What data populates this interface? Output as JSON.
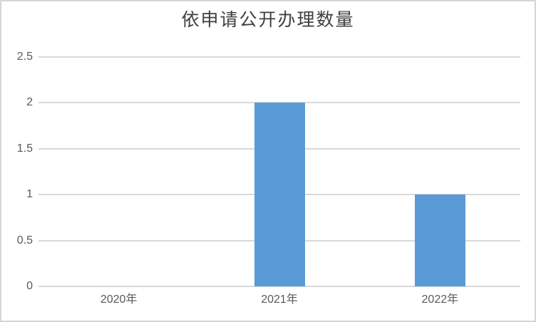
{
  "chart_data": {
    "type": "bar",
    "title": "依申请公开办理数量",
    "categories": [
      "2020年",
      "2021年",
      "2022年"
    ],
    "values": [
      0,
      2,
      1
    ],
    "series": [
      {
        "name": "依申请公开办理数量",
        "values": [
          0,
          2,
          1
        ]
      }
    ],
    "yticks": [
      {
        "label": "0",
        "value": 0
      },
      {
        "label": "0.5",
        "value": 0.5
      },
      {
        "label": "1",
        "value": 1
      },
      {
        "label": "1.5",
        "value": 1.5
      },
      {
        "label": "2",
        "value": 2
      },
      {
        "label": "2.5",
        "value": 2.5
      }
    ],
    "ylim": [
      0,
      2.5
    ],
    "xlabel": "",
    "ylabel": "",
    "grid": true,
    "legend": "none",
    "colors": {
      "bar": "#5b9bd5",
      "gridline": "#d9d9d9",
      "axis_text": "#595959",
      "title_text": "#404040",
      "frame_border": "#d5d5d5",
      "background": "#ffffff"
    }
  }
}
